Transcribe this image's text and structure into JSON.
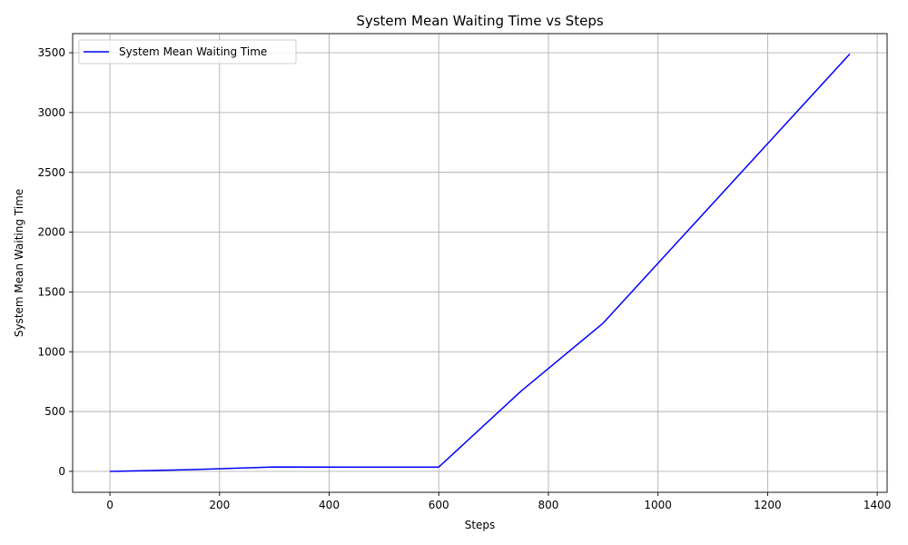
{
  "chart_data": {
    "type": "line",
    "title": "System Mean Waiting Time vs Steps",
    "xlabel": "Steps",
    "ylabel": "System Mean Waiting Time",
    "xlim": [
      -68,
      1418
    ],
    "ylim": [
      -175,
      3660
    ],
    "xticks": [
      0,
      200,
      400,
      600,
      800,
      1000,
      1200,
      1400
    ],
    "yticks": [
      0,
      500,
      1000,
      1500,
      2000,
      2500,
      3000,
      3500
    ],
    "grid": true,
    "legend_position": "top-left",
    "series": [
      {
        "name": "System Mean Waiting Time",
        "color": "#0000ff",
        "x": [
          0,
          150,
          300,
          450,
          600,
          750,
          900,
          1050,
          1200,
          1350
        ],
        "y": [
          0,
          15,
          37,
          36,
          36,
          670,
          1240,
          1990,
          2740,
          3490
        ]
      }
    ]
  }
}
